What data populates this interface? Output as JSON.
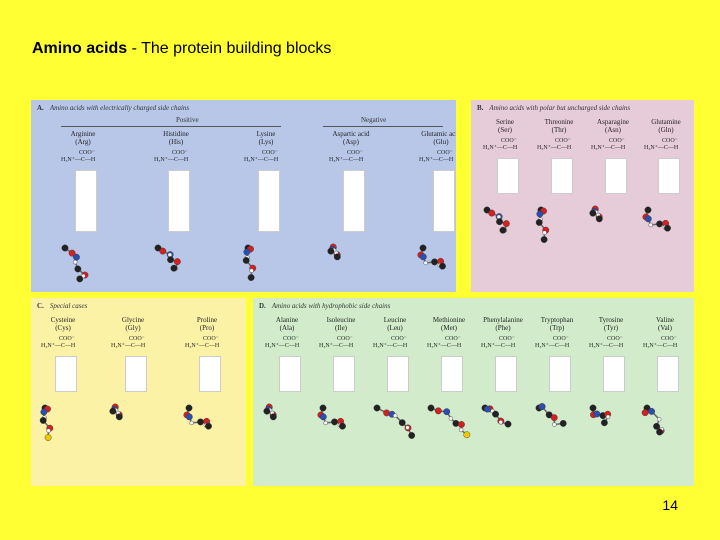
{
  "slide": {
    "title_bold": "Amino acids",
    "title_rest": " - The protein building blocks",
    "page_number": "14"
  },
  "panels": {
    "a": {
      "letter": "A.",
      "title": "Amino acids with electrically charged side chains",
      "positive_label": "Positive",
      "negative_label": "Negative",
      "amino_acids": [
        {
          "name": "Arginine",
          "abbr": "(Arg)"
        },
        {
          "name": "Histidine",
          "abbr": "(His)"
        },
        {
          "name": "Lysine",
          "abbr": "(Lys)"
        },
        {
          "name": "Aspartic acid",
          "abbr": "(Asp)"
        },
        {
          "name": "Glutamic acid",
          "abbr": "(Glu)"
        }
      ]
    },
    "b": {
      "letter": "B.",
      "title": "Amino acids with polar but uncharged side chains",
      "amino_acids": [
        {
          "name": "Serine",
          "abbr": "(Ser)"
        },
        {
          "name": "Threonine",
          "abbr": "(Thr)"
        },
        {
          "name": "Asparagine",
          "abbr": "(Asn)"
        },
        {
          "name": "Glutamine",
          "abbr": "(Gln)"
        }
      ]
    },
    "c": {
      "letter": "C.",
      "title": "Special cases",
      "amino_acids": [
        {
          "name": "Cysteine",
          "abbr": "(Cys)"
        },
        {
          "name": "Glycine",
          "abbr": "(Gly)"
        },
        {
          "name": "Proline",
          "abbr": "(Pro)"
        }
      ]
    },
    "d": {
      "letter": "D.",
      "title": "Amino acids with hydrophobic side chains",
      "amino_acids": [
        {
          "name": "Alanine",
          "abbr": "(Ala)"
        },
        {
          "name": "Isoleucine",
          "abbr": "(Ile)"
        },
        {
          "name": "Leucine",
          "abbr": "(Leu)"
        },
        {
          "name": "Methionine",
          "abbr": "(Met)"
        },
        {
          "name": "Phenylalanine",
          "abbr": "(Phe)"
        },
        {
          "name": "Tryptophan",
          "abbr": "(Trp)"
        },
        {
          "name": "Tyrosine",
          "abbr": "(Tyr)"
        },
        {
          "name": "Valine",
          "abbr": "(Val)"
        }
      ]
    }
  },
  "formula": {
    "coo": "COO⁻",
    "backbone": "H₃N⁺—C—H",
    "h": "H"
  },
  "colors": {
    "background": "#ffff33",
    "panel_a": "#b8c6e8",
    "panel_b": "#e6ccd8",
    "panel_c": "#fbf2a6",
    "panel_d": "#d2eccb",
    "carbon": "#222222",
    "oxygen": "#d42020",
    "nitrogen": "#2a4fb0",
    "hydrogen": "#f4f4f4",
    "sulfur": "#f0c800"
  }
}
